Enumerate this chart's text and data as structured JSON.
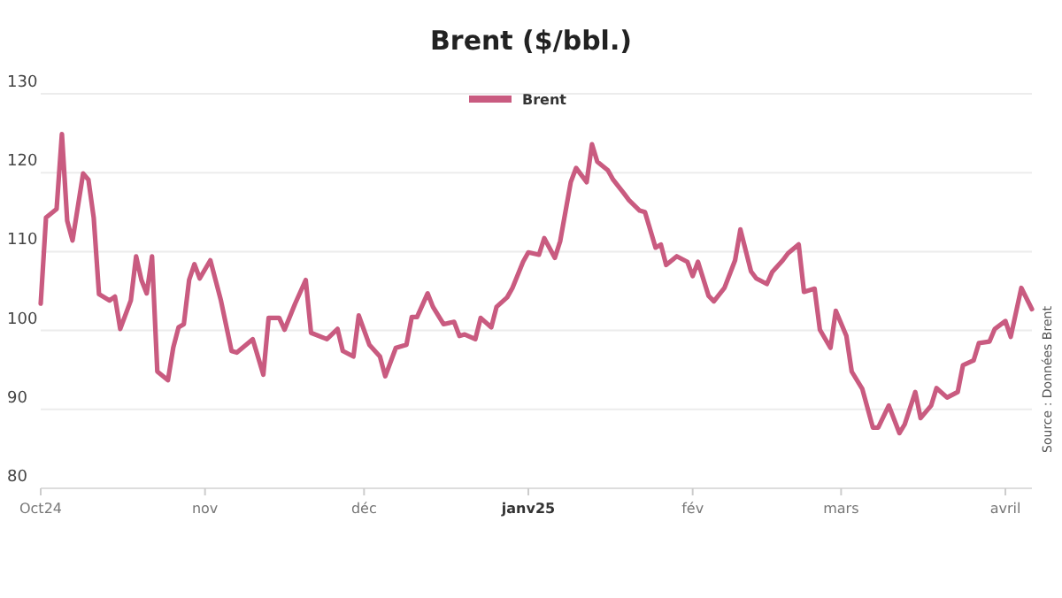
{
  "chart_data": {
    "type": "line",
    "title": "Brent ($/bbl.)",
    "annotations": [
      "Source : Données Brent"
    ],
    "x": [
      "2024-10-01",
      "2024-10-02",
      "2024-10-04",
      "2024-10-05",
      "2024-10-06",
      "2024-10-07",
      "2024-10-09",
      "2024-10-10",
      "2024-10-11",
      "2024-10-12",
      "2024-10-14",
      "2024-10-15",
      "2024-10-16",
      "2024-10-18",
      "2024-10-19",
      "2024-10-20",
      "2024-10-21",
      "2024-10-22",
      "2024-10-23",
      "2024-10-25",
      "2024-10-26",
      "2024-10-27",
      "2024-10-28",
      "2024-10-29",
      "2024-10-30",
      "2024-10-31",
      "2024-11-02",
      "2024-11-04",
      "2024-11-06",
      "2024-11-07",
      "2024-11-10",
      "2024-11-12",
      "2024-11-13",
      "2024-11-15",
      "2024-11-16",
      "2024-11-18",
      "2024-11-20",
      "2024-11-21",
      "2024-11-24",
      "2024-11-26",
      "2024-11-27",
      "2024-11-29",
      "2024-11-30",
      "2024-12-02",
      "2024-12-04",
      "2024-12-05",
      "2024-12-07",
      "2024-12-09",
      "2024-12-10",
      "2024-12-11",
      "2024-12-13",
      "2024-12-14",
      "2024-12-16",
      "2024-12-18",
      "2024-12-19",
      "2024-12-20",
      "2024-12-22",
      "2024-12-23",
      "2024-12-25",
      "2024-12-26",
      "2024-12-28",
      "2024-12-29",
      "2024-12-31",
      "2025-01-01",
      "2025-01-03",
      "2025-01-04",
      "2025-01-06",
      "2025-01-07",
      "2025-01-09",
      "2025-01-10",
      "2025-01-12",
      "2025-01-13",
      "2025-01-14",
      "2025-01-16",
      "2025-01-17",
      "2025-01-19",
      "2025-01-20",
      "2025-01-22",
      "2025-01-23",
      "2025-01-25",
      "2025-01-26",
      "2025-01-27",
      "2025-01-29",
      "2025-01-31",
      "2025-02-01",
      "2025-02-02",
      "2025-02-04",
      "2025-02-05",
      "2025-02-07",
      "2025-02-09",
      "2025-02-10",
      "2025-02-12",
      "2025-02-13",
      "2025-02-15",
      "2025-02-16",
      "2025-02-18",
      "2025-02-19",
      "2025-02-21",
      "2025-02-22",
      "2025-02-24",
      "2025-02-25",
      "2025-02-27",
      "2025-02-28",
      "2025-03-02",
      "2025-03-03",
      "2025-03-05",
      "2025-03-07",
      "2025-03-08",
      "2025-03-10",
      "2025-03-12",
      "2025-03-13",
      "2025-03-15",
      "2025-03-16",
      "2025-03-18",
      "2025-03-19",
      "2025-03-21",
      "2025-03-23",
      "2025-03-24",
      "2025-03-26",
      "2025-03-27",
      "2025-03-29",
      "2025-03-30",
      "2025-04-01",
      "2025-04-02",
      "2025-04-04",
      "2025-04-06"
    ],
    "series": [
      {
        "name": "Brent",
        "color": "#c95b80",
        "values": [
          103.4,
          114.3,
          115.4,
          124.9,
          113.9,
          111.4,
          119.9,
          119.1,
          114.3,
          104.6,
          103.8,
          104.3,
          100.2,
          103.8,
          109.4,
          106.4,
          104.7,
          109.4,
          94.8,
          93.7,
          97.8,
          100.4,
          100.8,
          106.4,
          108.4,
          106.6,
          108.9,
          103.8,
          97.4,
          97.2,
          98.9,
          94.4,
          101.6,
          101.6,
          100.1,
          103.4,
          106.4,
          99.7,
          98.9,
          100.2,
          97.4,
          96.7,
          101.9,
          98.2,
          96.7,
          94.2,
          97.8,
          98.2,
          101.7,
          101.7,
          104.7,
          103.0,
          100.8,
          101.1,
          99.3,
          99.5,
          98.9,
          101.6,
          100.4,
          103.0,
          104.2,
          105.4,
          108.7,
          109.9,
          109.6,
          111.7,
          109.2,
          111.3,
          118.8,
          120.6,
          118.8,
          123.6,
          121.4,
          120.3,
          119.1,
          117.4,
          116.5,
          115.2,
          115.0,
          110.5,
          110.9,
          108.3,
          109.4,
          108.7,
          106.9,
          108.7,
          104.4,
          103.7,
          105.4,
          108.9,
          112.8,
          107.5,
          106.6,
          105.9,
          107.4,
          108.9,
          109.8,
          110.9,
          104.9,
          105.3,
          100.1,
          97.8,
          102.5,
          99.3,
          94.8,
          92.6,
          87.7,
          87.7,
          90.5,
          87.0,
          88.1,
          92.2,
          88.9,
          90.5,
          92.7,
          91.5,
          92.2,
          95.6,
          96.2,
          98.4,
          98.6,
          100.2,
          101.2,
          99.2,
          105.4,
          102.7
        ]
      }
    ],
    "xlim": [
      "2024-10-01",
      "2025-04-06"
    ],
    "xticks": [
      {
        "value": "2024-10-01",
        "label": "Oct24"
      },
      {
        "value": "2024-11-01",
        "label": "nov"
      },
      {
        "value": "2024-12-01",
        "label": "déc"
      },
      {
        "value": "2025-01-01",
        "label": "janv25"
      },
      {
        "value": "2025-02-01",
        "label": "fév"
      },
      {
        "value": "2025-03-01",
        "label": "mars"
      },
      {
        "value": "2025-04-01",
        "label": "avril"
      }
    ],
    "ylim": [
      80,
      130
    ],
    "yticks": [
      80,
      90,
      100,
      110,
      120,
      130
    ],
    "grid": "y",
    "legend": "top",
    "marker": "none",
    "line_style": "solid"
  }
}
